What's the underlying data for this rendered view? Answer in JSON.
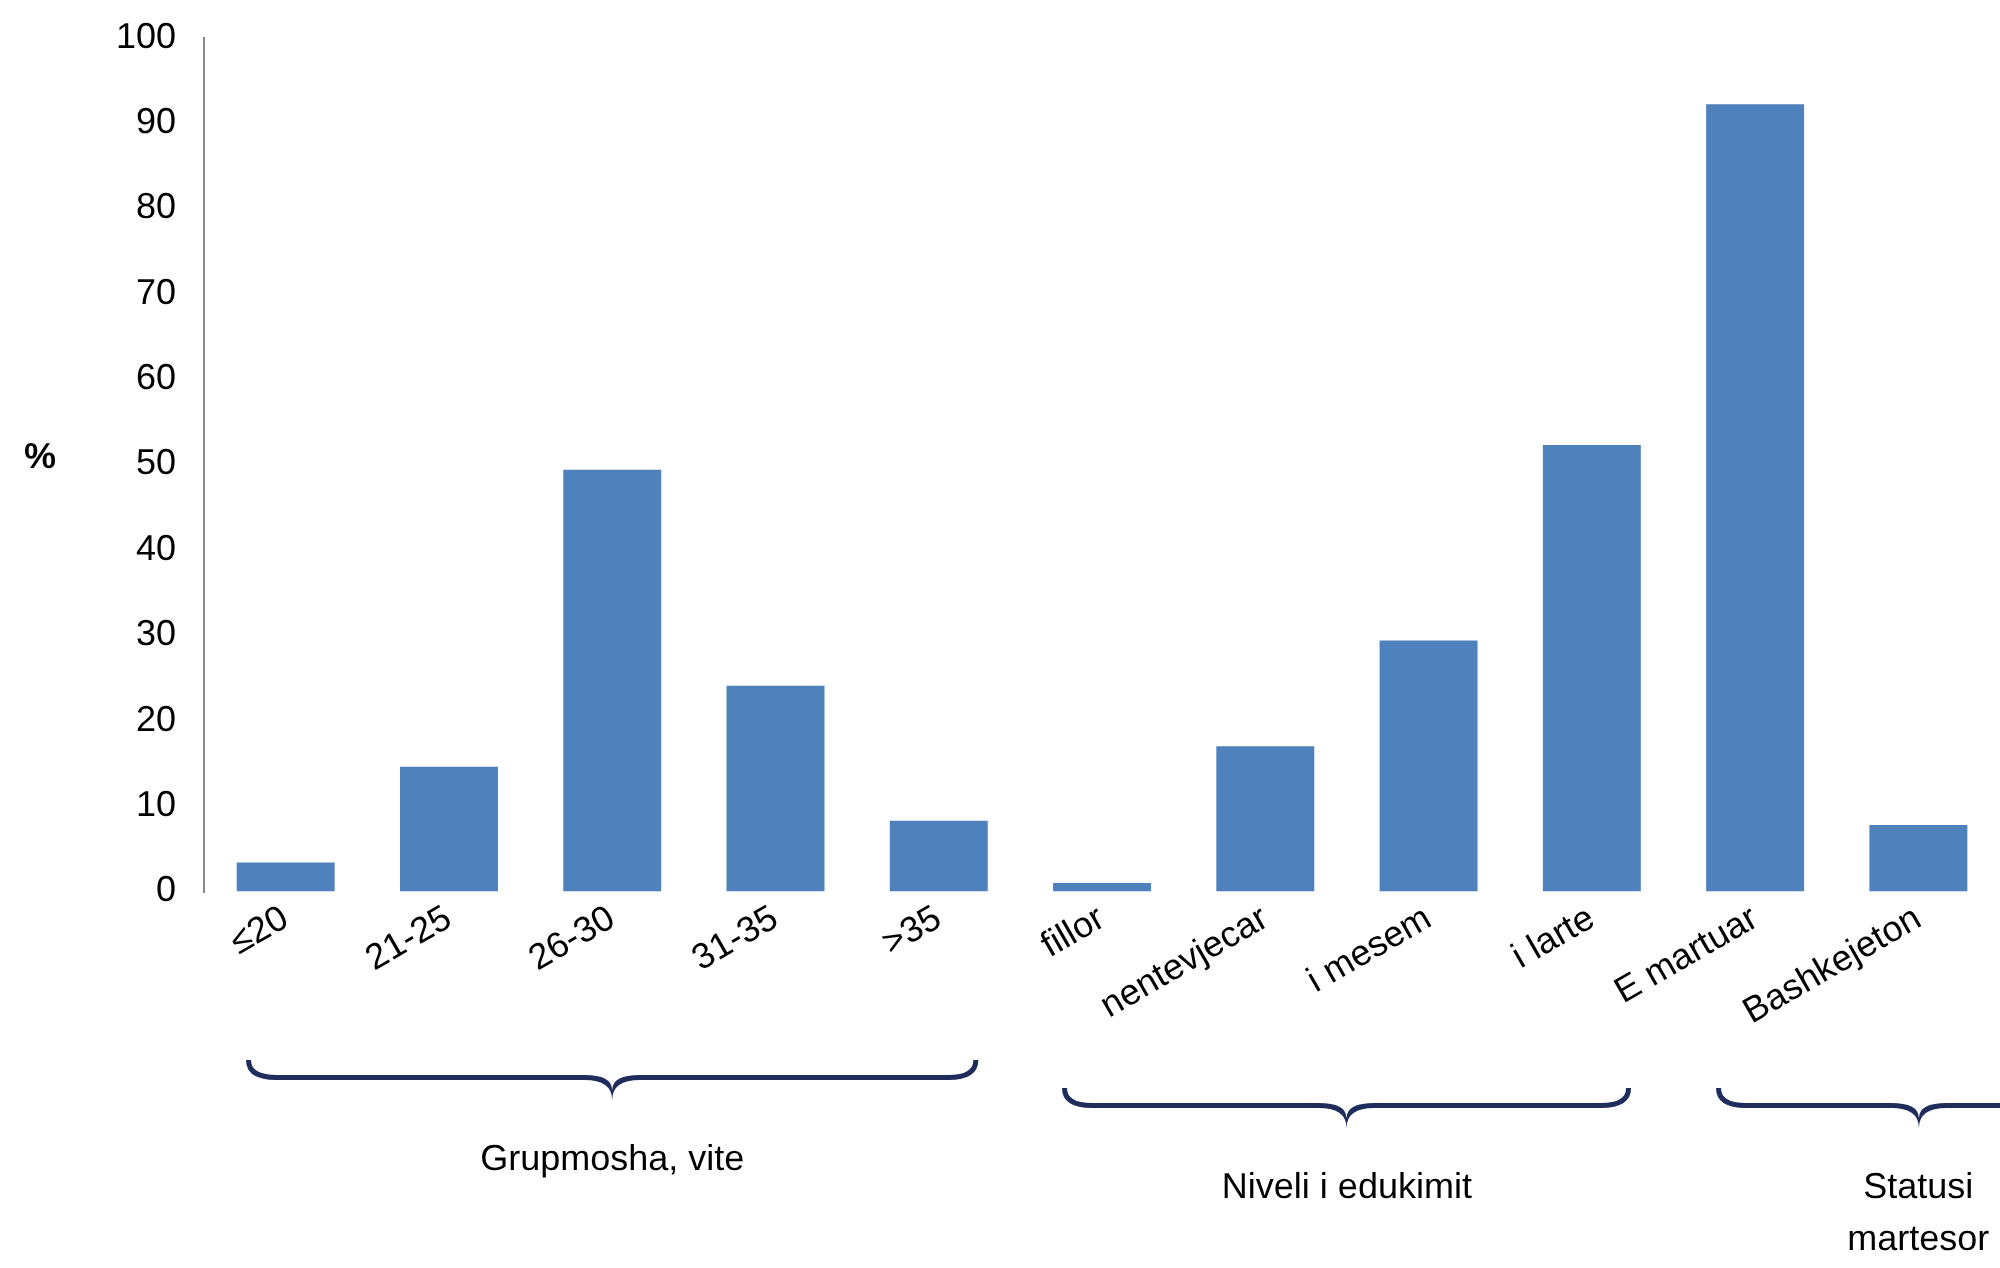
{
  "chart_data": {
    "type": "bar",
    "ylabel": "%",
    "categories": [
      "≤20",
      "21-25",
      "26-30",
      "31-35",
      ">35",
      "fillor",
      "nentevjecar",
      "i mesem",
      "i larte",
      "E martuar",
      "Bashkejeton"
    ],
    "values": [
      3.4,
      14.6,
      49.4,
      24.1,
      8.3,
      1.0,
      17.0,
      29.4,
      52.3,
      92.2,
      7.8
    ],
    "color": "#4f81bd",
    "ylim": [
      0,
      100
    ],
    "yticks": [
      0,
      10,
      20,
      30,
      40,
      50,
      60,
      70,
      80,
      90,
      100
    ],
    "grid": false,
    "legend": false,
    "annotations": [
      "Grupmosha, vite",
      "Niveli i edukimit",
      "Statusi martesor"
    ]
  }
}
